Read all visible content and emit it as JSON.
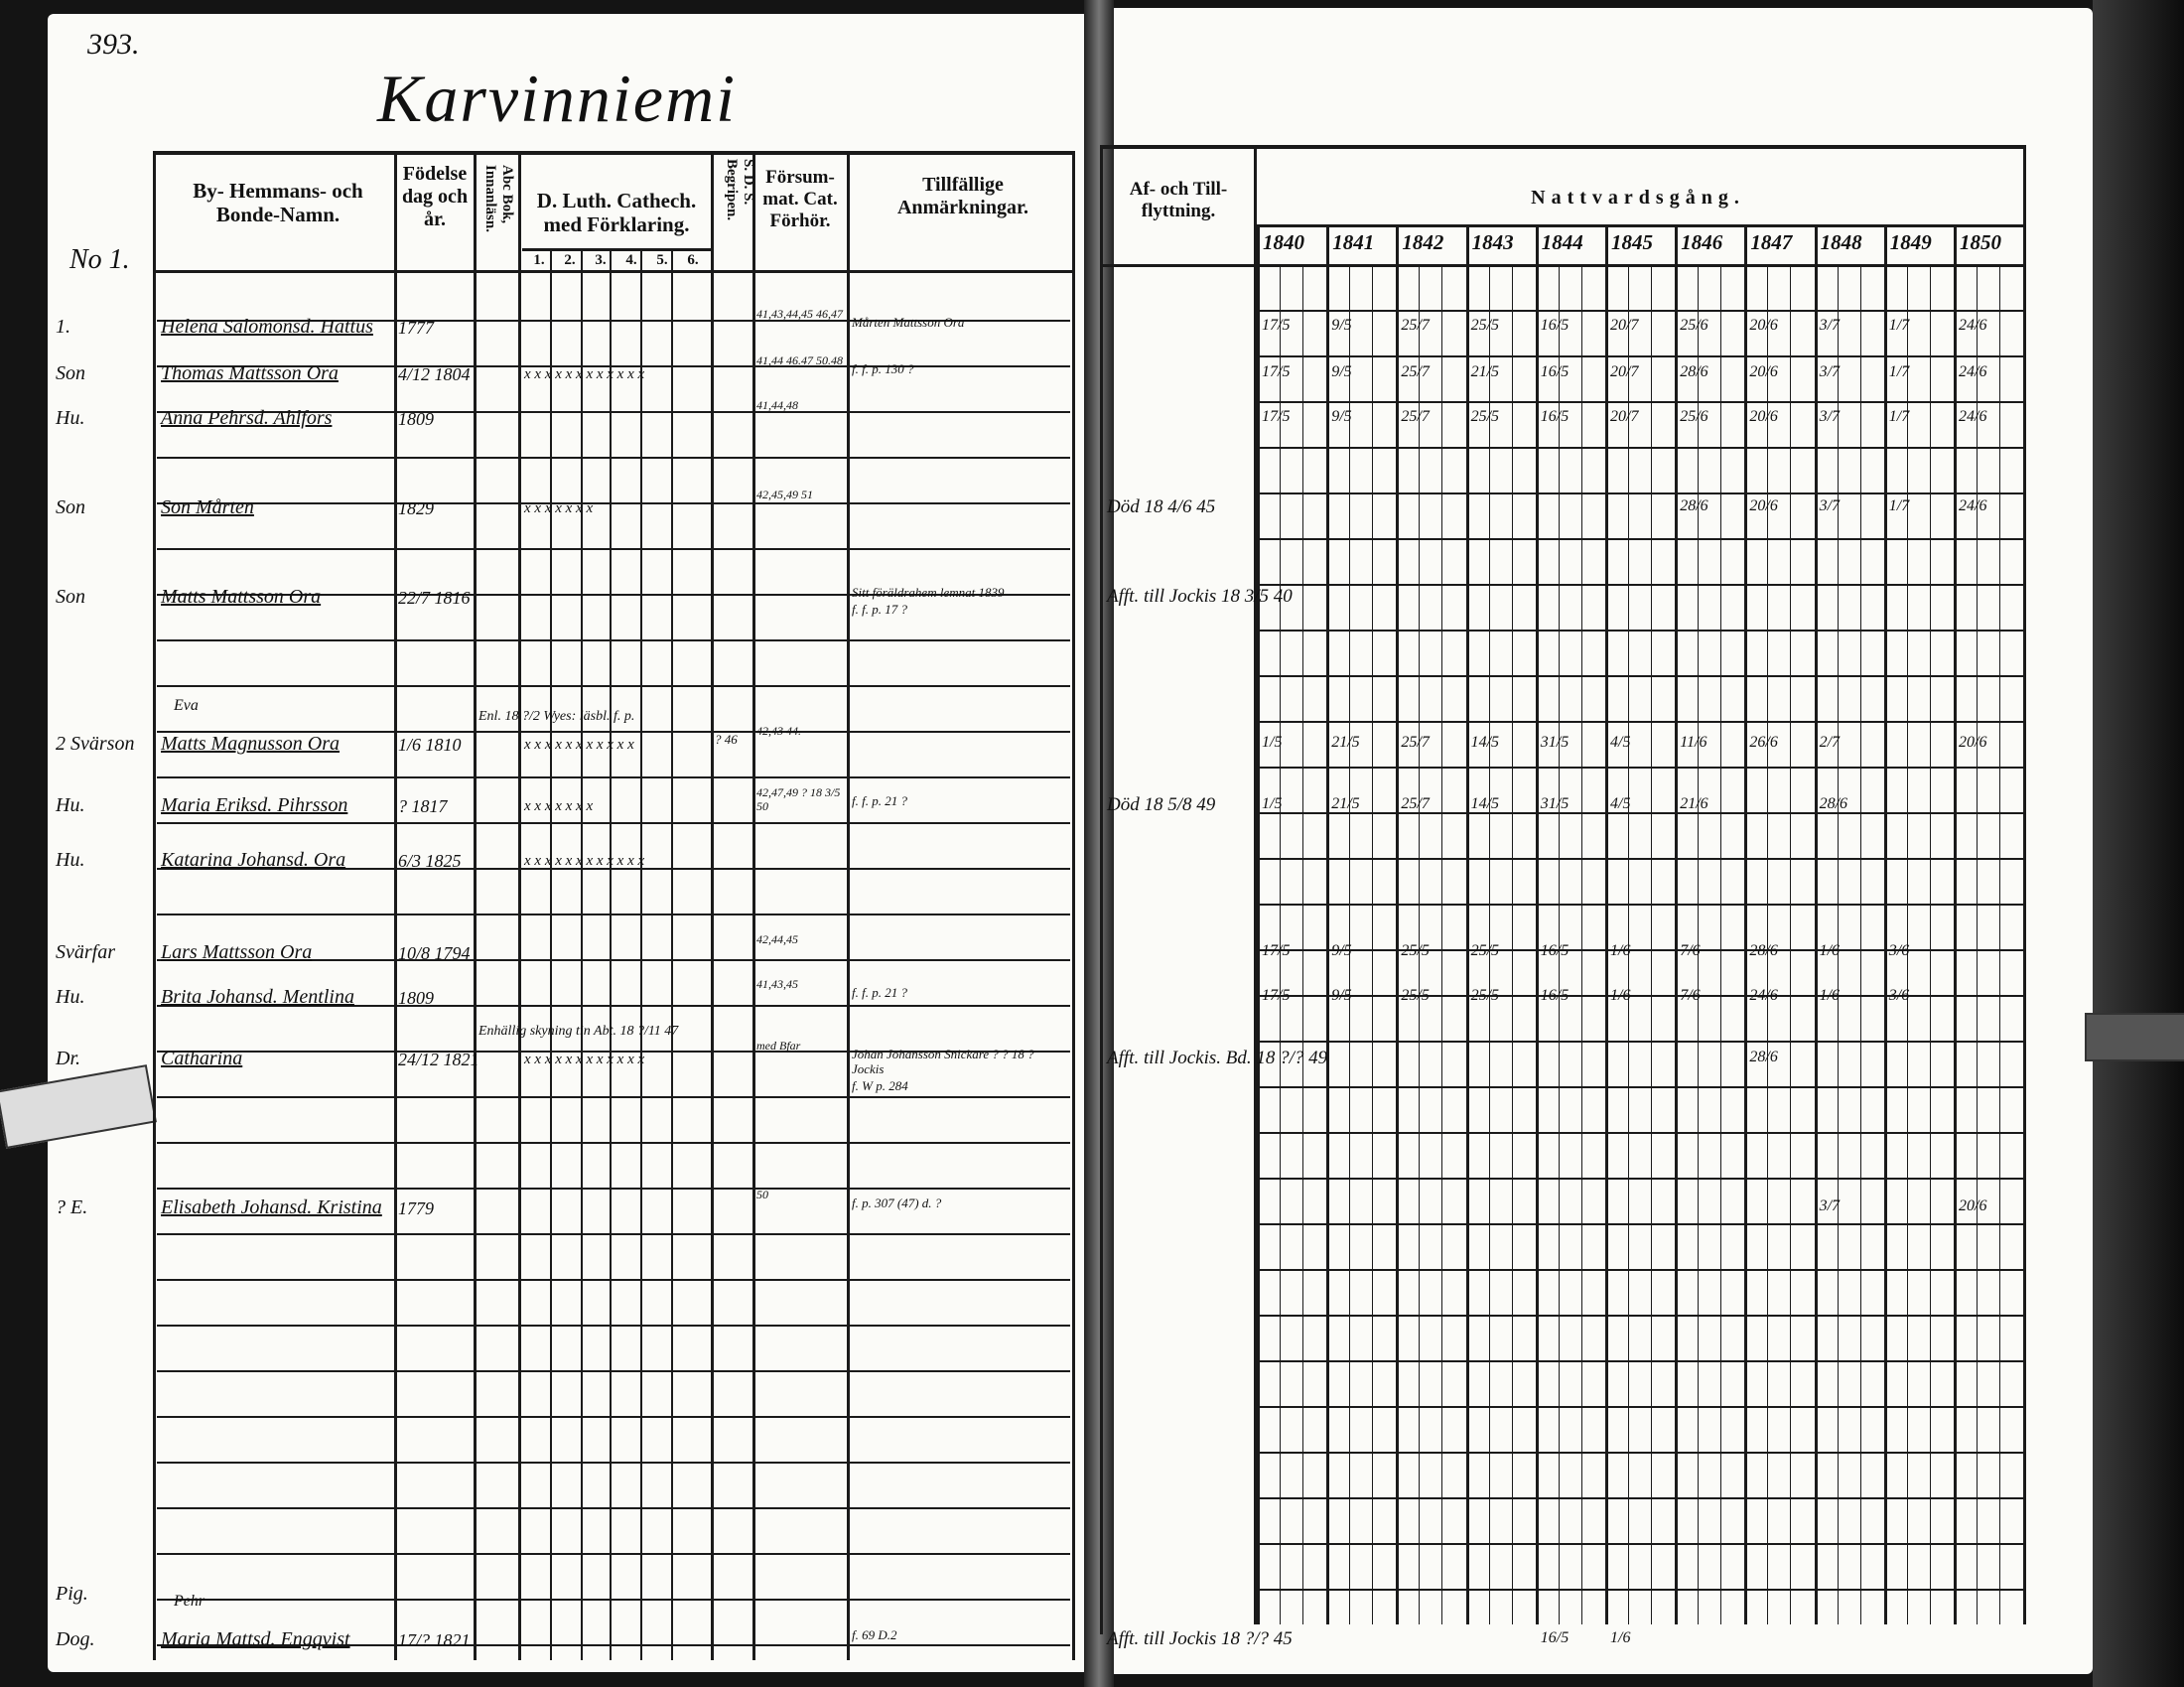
{
  "page_number": "393.",
  "village_title": "Karvinniemi",
  "household_label": "No 1.",
  "left_headers": {
    "name": "By- Hemmans- och Bonde-Namn.",
    "birth": "Födelse dag och år.",
    "abc": "Abc Bok, Innanläsn.",
    "catechism": "D. Luth. Cathech. med Förklaring.",
    "catechism_cols": [
      "1.",
      "2.",
      "3.",
      "4.",
      "5.",
      "6."
    ],
    "sds": "S. D. S. Begripen.",
    "forsummat": "Försum-mat. Cat. Förhör.",
    "tillfallige": "Tillfällige Anmärkningar."
  },
  "right_headers": {
    "moves": "Af- och Till-flyttning.",
    "communion": "Nattvardsgång.",
    "years": [
      "1840",
      "1841",
      "1842",
      "1843",
      "1844",
      "1845",
      "1846",
      "1847",
      "1848",
      "1849",
      "1850"
    ]
  },
  "entries": [
    {
      "role": "1.",
      "name": "Helena Salomonsd. Hattus",
      "birth": "1777",
      "marks": "",
      "forsummat": "41,43,44,45 46,47",
      "note": "Mårten Mattsson Ora",
      "move": "",
      "communion": {
        "1840": "17/5",
        "1841": "9/5",
        "1842": "25/7",
        "1843": "25/5",
        "1844": "16/5",
        "1845": "20/7",
        "1846": "25/6",
        "1847": "20/6",
        "1848": "3/7",
        "1849": "1/7",
        "1850": "24/6"
      }
    },
    {
      "role": "Son",
      "name": "Thomas Mattsson Ora",
      "birth": "4/12 1804",
      "marks": "x x x x x x x x x x x x",
      "forsummat": "41,44 46.47 50.48",
      "note": "f. f. p. 130 ?",
      "move": "",
      "communion": {
        "1840": "17/5",
        "1841": "9/5",
        "1842": "25/7",
        "1843": "21/5",
        "1844": "16/5",
        "1845": "20/7",
        "1846": "28/6",
        "1847": "20/6",
        "1848": "3/7",
        "1849": "1/7",
        "1850": "24/6"
      }
    },
    {
      "role": "Hu.",
      "name": "Anna Pehrsd. Ahlfors",
      "birth": "1809",
      "marks": "",
      "forsummat": "41,44,48",
      "note": "",
      "move": "",
      "communion": {
        "1840": "17/5",
        "1841": "9/5",
        "1842": "25/7",
        "1843": "25/5",
        "1844": "16/5",
        "1845": "20/7",
        "1846": "25/6",
        "1847": "20/6",
        "1848": "3/7",
        "1849": "1/7",
        "1850": "24/6"
      }
    },
    {
      "role": "Son",
      "name": "Son Mårten",
      "birth": "1829",
      "marks": "x x x x x x x",
      "forsummat": "42,45,49 51",
      "note": "",
      "move": "Död 18 4/6 45",
      "communion": {
        "1846": "28/6",
        "1847": "20/6",
        "1848": "3/7",
        "1849": "1/7",
        "1850": "24/6"
      }
    },
    {
      "role": "Son",
      "name": "Matts Mattsson Ora",
      "birth": "22/7 1816",
      "marks": "",
      "forsummat": "",
      "note": "Sitt föräldrahem lemnat 1839",
      "note2": "f. f. p. 17 ?",
      "move": "Afft. till Jockis 18 3/5 40",
      "communion": {}
    },
    {
      "role": "2 Svärson",
      "name": "Matts Magnusson Ora",
      "above": "Eva",
      "birth": "1/6 1810",
      "marks": "x x x x x x x x x x x",
      "marks_note": "Enl. 18 ?/2 Wyes: läsbl. f. p.",
      "sds": "? 46",
      "forsummat": "42,43 44.",
      "note": "",
      "move": "",
      "communion": {
        "1840": "1/5",
        "1841": "21/5",
        "1842": "25/7",
        "1843": "14/5",
        "1844": "31/5",
        "1845": "4/5",
        "1846": "11/6",
        "1847": "26/6",
        "1848": "2/7",
        "1850": "20/6"
      }
    },
    {
      "role": "Hu.",
      "name": "Maria Eriksd. Pihrsson",
      "birth": "? 1817",
      "marks": "x x x x x x x",
      "forsummat": "42,47,49 ? 18 3/5 50",
      "note": "f. f. p. 21 ?",
      "move": "Död 18 5/8 49",
      "communion": {
        "1840": "1/5",
        "1841": "21/5",
        "1842": "25/7",
        "1843": "14/5",
        "1844": "31/5",
        "1845": "4/5",
        "1846": "21/6",
        "1848": "28/6"
      }
    },
    {
      "role": "Hu.",
      "name": "Katarina Johansd. Ora",
      "birth": "6/3 1825",
      "marks": "x x x x x x x x x x x x",
      "forsummat": "",
      "note": "",
      "move": "",
      "communion": {}
    },
    {
      "role": "Svärfar",
      "name": "Lars Mattsson Ora",
      "birth": "10/8 1794",
      "marks": "",
      "forsummat": "42,44,45",
      "note": "",
      "move": "",
      "communion": {
        "1840": "17/5",
        "1841": "9/5",
        "1842": "25/5",
        "1843": "25/5",
        "1844": "16/5",
        "1845": "1/6",
        "1846": "7/6",
        "1847": "28/6",
        "1848": "1/6",
        "1849": "3/6"
      }
    },
    {
      "role": "Hu.",
      "name": "Brita Johansd. Mentlina",
      "birth": "1809",
      "marks": "",
      "forsummat": "41,43,45",
      "note": "f. f. p. 21 ?",
      "move": "",
      "communion": {
        "1840": "17/5",
        "1841": "9/5",
        "1842": "25/5",
        "1843": "25/5",
        "1844": "16/5",
        "1845": "1/6",
        "1846": "7/6",
        "1847": "24/6",
        "1848": "1/6",
        "1849": "3/6"
      }
    },
    {
      "role": "Dr.",
      "name": "Catharina",
      "birth": "24/12 1821",
      "marks": "x x x x x x x x x x x x",
      "marks_note": "Enhällig skyning tin Abt. 18 ?/11 47",
      "forsummat": "med Bfar",
      "note": "Johan Johansson Snickare ? ? 18 ? Jockis",
      "note2": "f. W p. 284",
      "move": "Afft. till Jockis. Bd. 18 ?/? 49",
      "communion": {
        "1847": "28/6"
      }
    },
    {
      "role": "? E.",
      "name": "Elisabeth Johansd. Kristina",
      "birth": "1779",
      "marks": "",
      "forsummat": "50",
      "note": "f. p. 307 (47) d. ?",
      "move": "",
      "communion": {
        "1848": "3/7",
        "1850": "20/6"
      }
    },
    {
      "role": "Dog.",
      "role2": "Pig.",
      "above": "Pehr",
      "name": "Maria Mattsd. Engqvist",
      "birth": "17/? 1821",
      "marks": "",
      "forsummat": "",
      "note": "f. 69 D.2",
      "move": "Afft. till Jockis 18 ?/? 45",
      "communion": {
        "1844": "16/5",
        "1845": "1/6"
      }
    }
  ],
  "colors": {
    "ink": "#111111",
    "paper": "#fbfbf8",
    "background": "#141414"
  }
}
